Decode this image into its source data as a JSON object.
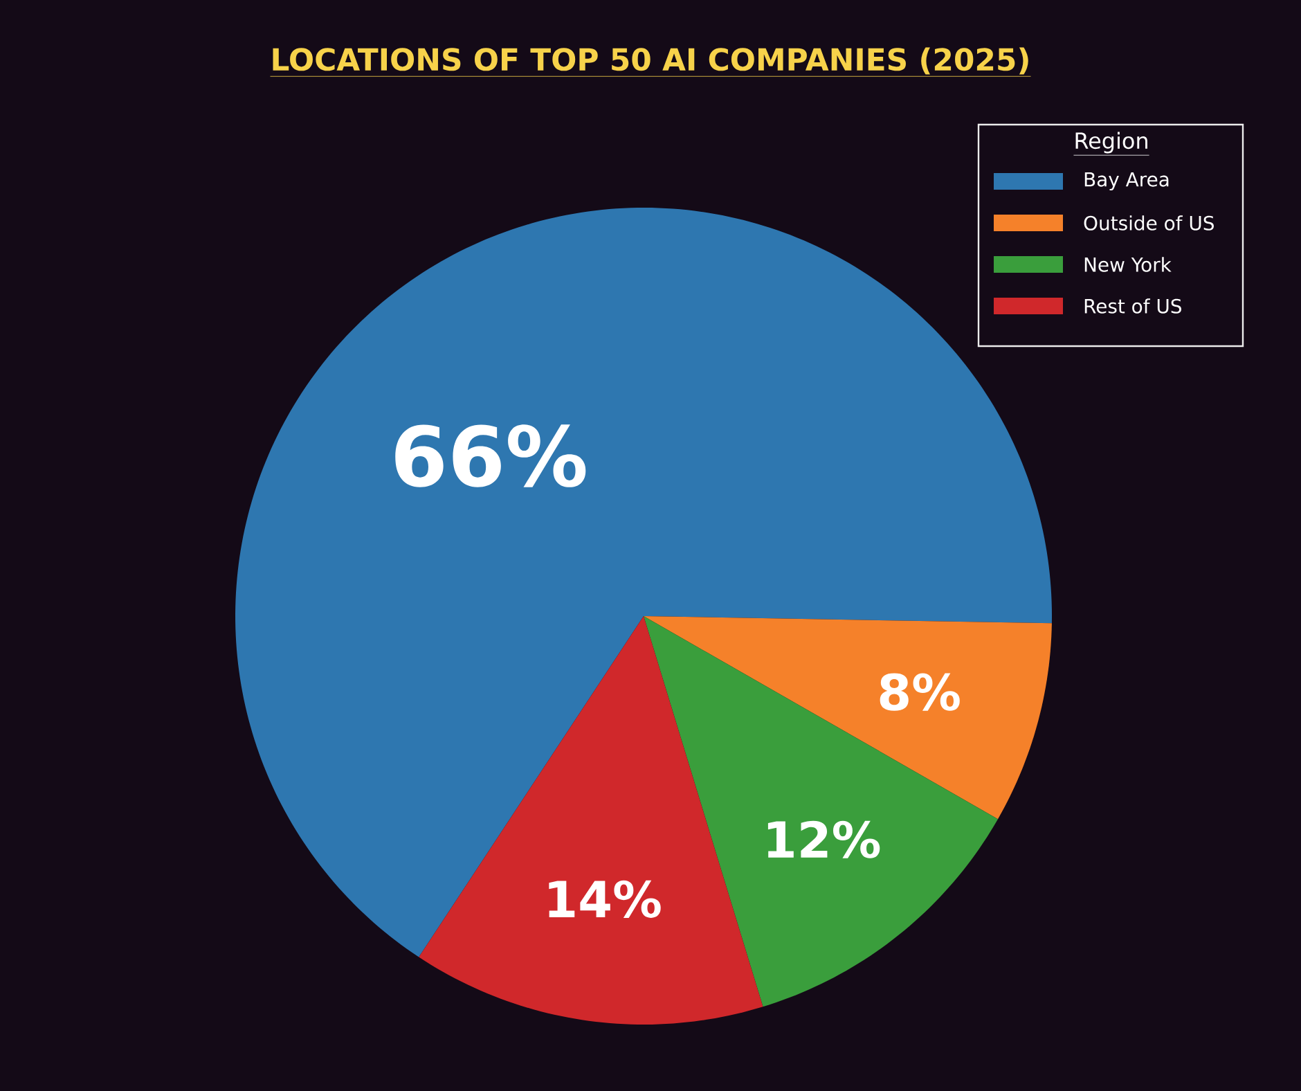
{
  "chart_data": {
    "type": "pie",
    "title": "LOCATIONS OF TOP 50 AI COMPANIES (2025)",
    "legend_title": "Region",
    "categories": [
      "Bay Area",
      "Outside of US",
      "New York",
      "Rest of US"
    ],
    "values": [
      66,
      8,
      12,
      14
    ],
    "colors": [
      "#2e77b0",
      "#f5812a",
      "#3a9e3c",
      "#d0282b"
    ],
    "value_labels": [
      "66%",
      "8%",
      "12%",
      "14%"
    ],
    "legend": "top right"
  }
}
